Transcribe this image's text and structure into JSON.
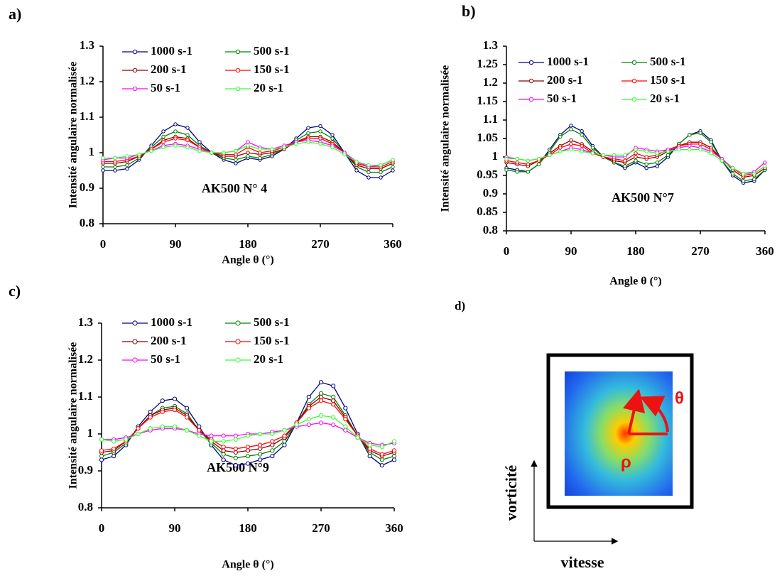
{
  "chart_data": [
    {
      "type": "line",
      "panel": "a)",
      "annotation": "AK500 N° 4",
      "xlabel": "Angle θ (°)",
      "ylabel": "Intensité angulaire normalisée",
      "x": [
        0,
        15,
        30,
        45,
        60,
        75,
        90,
        105,
        120,
        135,
        150,
        165,
        180,
        195,
        210,
        225,
        240,
        255,
        270,
        285,
        300,
        315,
        330,
        345,
        360
      ],
      "xlim": [
        0,
        360
      ],
      "ylim": [
        0.8,
        1.3
      ],
      "xticks": [
        0,
        90,
        180,
        270,
        360
      ],
      "yticks": [
        0.8,
        0.9,
        1,
        1.1,
        1.2,
        1.3
      ],
      "series": [
        {
          "name": "1000 s-1",
          "color": "#000080",
          "values": [
            0.95,
            0.95,
            0.955,
            0.98,
            1.02,
            1.06,
            1.08,
            1.07,
            1.03,
            1.0,
            0.98,
            0.97,
            0.985,
            0.98,
            0.99,
            1.01,
            1.04,
            1.07,
            1.075,
            1.05,
            1.0,
            0.95,
            0.93,
            0.93,
            0.95
          ]
        },
        {
          "name": "500 s-1",
          "color": "#008000",
          "values": [
            0.96,
            0.96,
            0.965,
            0.985,
            1.015,
            1.045,
            1.06,
            1.05,
            1.02,
            1.0,
            0.985,
            0.98,
            0.99,
            0.985,
            0.995,
            1.01,
            1.035,
            1.055,
            1.06,
            1.04,
            1.0,
            0.96,
            0.945,
            0.945,
            0.96
          ]
        },
        {
          "name": "200 s-1",
          "color": "#8b0000",
          "values": [
            0.97,
            0.97,
            0.975,
            0.99,
            1.01,
            1.035,
            1.045,
            1.04,
            1.015,
            1.0,
            0.99,
            0.99,
            1.0,
            0.995,
            1.0,
            1.01,
            1.03,
            1.045,
            1.045,
            1.03,
            1.0,
            0.965,
            0.955,
            0.955,
            0.97
          ]
        },
        {
          "name": "150 s-1",
          "color": "#ff0000",
          "values": [
            0.975,
            0.975,
            0.98,
            0.99,
            1.01,
            1.03,
            1.04,
            1.035,
            1.015,
            1.0,
            0.995,
            0.995,
            1.015,
            1.0,
            1.005,
            1.015,
            1.03,
            1.04,
            1.04,
            1.025,
            1.0,
            0.97,
            0.96,
            0.96,
            0.975
          ]
        },
        {
          "name": "50 s-1",
          "color": "#ff00ff",
          "values": [
            0.98,
            0.985,
            0.985,
            0.995,
            1.005,
            1.02,
            1.025,
            1.02,
            1.01,
            1.0,
            1.0,
            1.005,
            1.03,
            1.015,
            1.01,
            1.02,
            1.03,
            1.035,
            1.03,
            1.02,
            1.0,
            0.975,
            0.96,
            0.965,
            0.98
          ]
        },
        {
          "name": "20 s-1",
          "color": "#33ff33",
          "values": [
            0.985,
            0.985,
            0.99,
            0.995,
            1.005,
            1.015,
            1.02,
            1.015,
            1.005,
            1.0,
            1.0,
            1.005,
            1.02,
            1.01,
            1.01,
            1.015,
            1.025,
            1.03,
            1.025,
            1.015,
            0.995,
            0.975,
            0.965,
            0.965,
            0.98
          ]
        }
      ]
    },
    {
      "type": "line",
      "panel": "b)",
      "annotation": "AK500 N°7",
      "xlabel": "Angle θ (°)",
      "ylabel": "Intensité angulaire normalisée",
      "x": [
        0,
        15,
        30,
        45,
        60,
        75,
        90,
        105,
        120,
        135,
        150,
        165,
        180,
        195,
        210,
        225,
        240,
        255,
        270,
        285,
        300,
        315,
        330,
        345,
        360
      ],
      "xlim": [
        0,
        360
      ],
      "ylim": [
        0.8,
        1.3
      ],
      "xticks": [
        0,
        90,
        180,
        270,
        360
      ],
      "yticks": [
        0.8,
        0.85,
        0.9,
        0.95,
        1,
        1.05,
        1.1,
        1.15,
        1.2,
        1.25,
        1.3
      ],
      "series": [
        {
          "name": "1000 s-1",
          "color": "#000080",
          "values": [
            0.97,
            0.965,
            0.96,
            0.98,
            1.02,
            1.06,
            1.085,
            1.07,
            1.03,
            1.0,
            0.985,
            0.97,
            0.985,
            0.97,
            0.975,
            1.0,
            1.035,
            1.06,
            1.07,
            1.045,
            0.99,
            0.95,
            0.93,
            0.935,
            0.965
          ]
        },
        {
          "name": "500 s-1",
          "color": "#008000",
          "values": [
            0.965,
            0.96,
            0.96,
            0.98,
            1.015,
            1.055,
            1.075,
            1.06,
            1.025,
            1.0,
            0.985,
            0.975,
            0.99,
            0.98,
            0.985,
            1.005,
            1.035,
            1.06,
            1.065,
            1.04,
            0.99,
            0.955,
            0.935,
            0.94,
            0.965
          ]
        },
        {
          "name": "200 s-1",
          "color": "#8b0000",
          "values": [
            0.985,
            0.98,
            0.975,
            0.99,
            1.01,
            1.03,
            1.045,
            1.035,
            1.015,
            1.0,
            0.99,
            0.985,
            1.0,
            0.995,
            1.0,
            1.015,
            1.03,
            1.04,
            1.04,
            1.025,
            0.995,
            0.965,
            0.945,
            0.95,
            0.97
          ]
        },
        {
          "name": "150 s-1",
          "color": "#ff0000",
          "values": [
            0.99,
            0.985,
            0.98,
            0.99,
            1.005,
            1.025,
            1.035,
            1.03,
            1.01,
            1.0,
            0.995,
            0.99,
            1.01,
            1.0,
            1.005,
            1.02,
            1.03,
            1.035,
            1.035,
            1.02,
            0.995,
            0.97,
            0.95,
            0.955,
            0.975
          ]
        },
        {
          "name": "50 s-1",
          "color": "#ff00ff",
          "values": [
            1.0,
            0.995,
            0.99,
            0.995,
            1.005,
            1.015,
            1.025,
            1.02,
            1.01,
            1.005,
            1.0,
            1.0,
            1.025,
            1.02,
            1.015,
            1.02,
            1.025,
            1.03,
            1.025,
            1.015,
            0.995,
            0.97,
            0.955,
            0.96,
            0.985
          ]
        },
        {
          "name": "20 s-1",
          "color": "#33ff33",
          "values": [
            0.995,
            0.995,
            0.99,
            0.995,
            1.005,
            1.015,
            1.02,
            1.015,
            1.01,
            1.005,
            1.005,
            1.005,
            1.02,
            1.015,
            1.01,
            1.015,
            1.02,
            1.02,
            1.02,
            1.01,
            0.99,
            0.97,
            0.955,
            0.955,
            0.975
          ]
        }
      ]
    },
    {
      "type": "line",
      "panel": "c)",
      "annotation": "AK500 N°9",
      "xlabel": "Angle θ (°)",
      "ylabel": "Intensité angulaire normalisée",
      "x": [
        0,
        15,
        30,
        45,
        60,
        75,
        90,
        105,
        120,
        135,
        150,
        165,
        180,
        195,
        210,
        225,
        240,
        255,
        270,
        285,
        300,
        315,
        330,
        345,
        360
      ],
      "xlim": [
        0,
        360
      ],
      "ylim": [
        0.8,
        1.3
      ],
      "xticks": [
        0,
        90,
        180,
        270,
        360
      ],
      "yticks": [
        0.8,
        0.9,
        1,
        1.1,
        1.2,
        1.3
      ],
      "series": [
        {
          "name": "1000 s-1",
          "color": "#000080",
          "values": [
            0.93,
            0.94,
            0.97,
            1.02,
            1.06,
            1.09,
            1.095,
            1.07,
            1.02,
            0.97,
            0.93,
            0.915,
            0.92,
            0.93,
            0.94,
            0.97,
            1.03,
            1.1,
            1.14,
            1.13,
            1.07,
            1.0,
            0.94,
            0.915,
            0.93
          ]
        },
        {
          "name": "500 s-1",
          "color": "#008000",
          "values": [
            0.94,
            0.95,
            0.975,
            1.015,
            1.05,
            1.07,
            1.075,
            1.055,
            1.01,
            0.975,
            0.945,
            0.935,
            0.94,
            0.945,
            0.955,
            0.98,
            1.03,
            1.08,
            1.11,
            1.1,
            1.05,
            0.995,
            0.95,
            0.93,
            0.94
          ]
        },
        {
          "name": "200 s-1",
          "color": "#8b0000",
          "values": [
            0.95,
            0.955,
            0.98,
            1.015,
            1.05,
            1.065,
            1.07,
            1.05,
            1.01,
            0.98,
            0.955,
            0.95,
            0.955,
            0.96,
            0.97,
            0.99,
            1.03,
            1.075,
            1.1,
            1.09,
            1.045,
            0.995,
            0.955,
            0.94,
            0.95
          ]
        },
        {
          "name": "150 s-1",
          "color": "#ff0000",
          "values": [
            0.955,
            0.96,
            0.98,
            1.015,
            1.045,
            1.06,
            1.065,
            1.045,
            1.01,
            0.985,
            0.965,
            0.96,
            0.965,
            0.97,
            0.98,
            0.995,
            1.03,
            1.07,
            1.09,
            1.08,
            1.04,
            0.995,
            0.96,
            0.945,
            0.955
          ]
        },
        {
          "name": "50 s-1",
          "color": "#ff00ff",
          "values": [
            0.985,
            0.985,
            0.99,
            1.0,
            1.01,
            1.015,
            1.015,
            1.01,
            1.0,
            0.995,
            0.995,
            0.995,
            1.0,
            1.0,
            1.005,
            1.01,
            1.02,
            1.025,
            1.03,
            1.025,
            1.01,
            0.99,
            0.975,
            0.97,
            0.975
          ]
        },
        {
          "name": "20 s-1",
          "color": "#33ff33",
          "values": [
            0.985,
            0.98,
            0.985,
            1.0,
            1.015,
            1.02,
            1.02,
            1.01,
            0.995,
            0.98,
            0.98,
            0.985,
            0.995,
            1.0,
            1.0,
            1.01,
            1.025,
            1.04,
            1.05,
            1.045,
            1.02,
            0.99,
            0.97,
            0.965,
            0.98
          ]
        }
      ]
    }
  ],
  "diagram": {
    "panel": "d)",
    "theta": "θ",
    "rho": "ρ",
    "y_axis": "vorticité",
    "x_axis": "vitesse"
  }
}
